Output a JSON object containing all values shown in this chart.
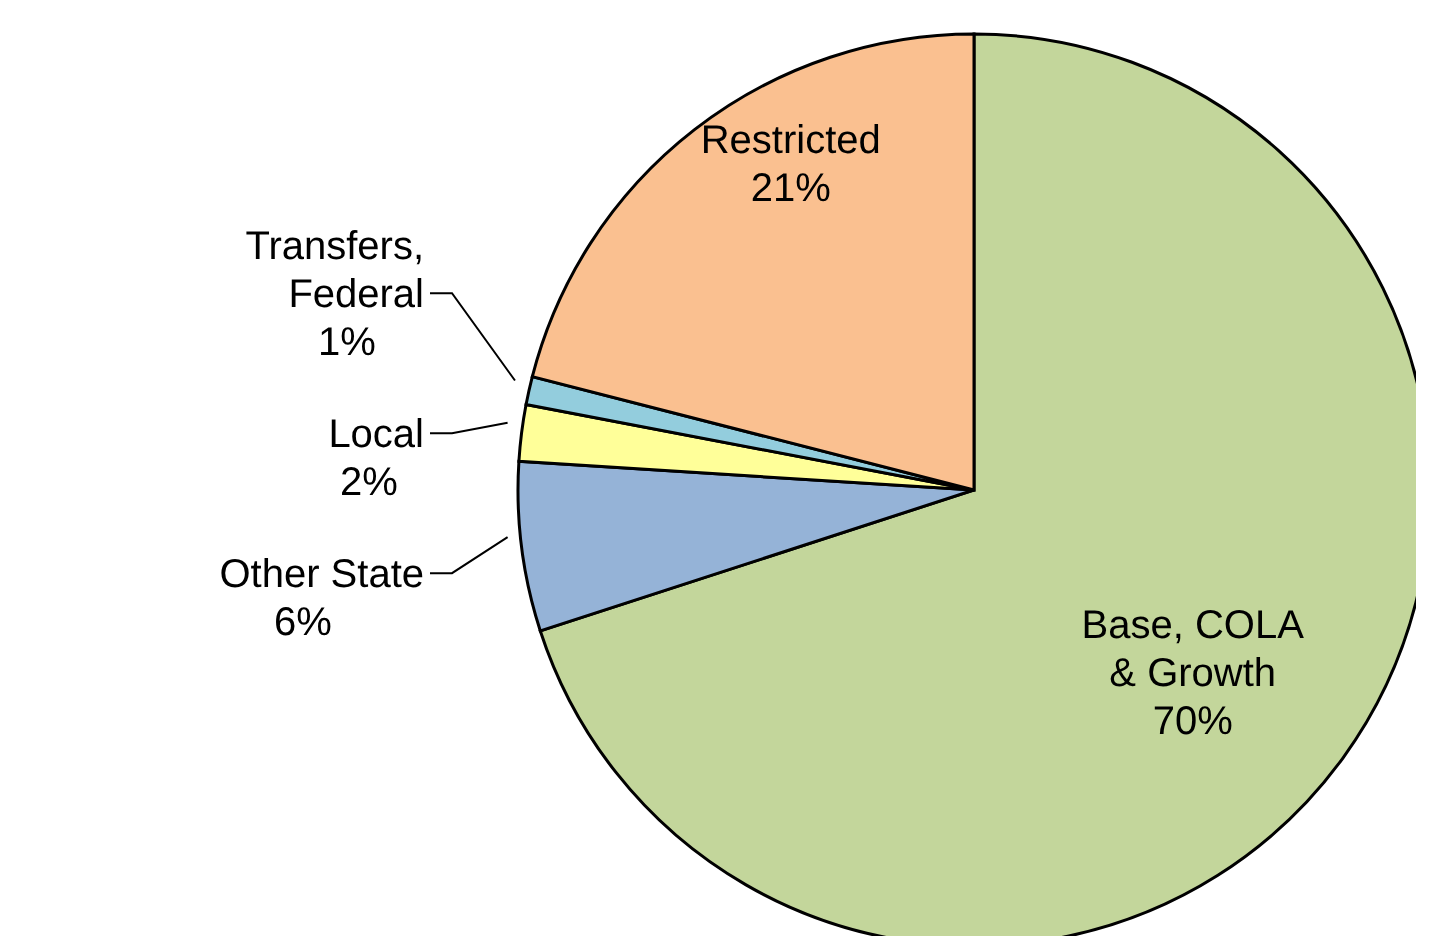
{
  "chart_data": {
    "type": "pie",
    "categories": [
      "Base, COLA & Growth",
      "Other State",
      "Local",
      "Transfers, Federal",
      "Restricted"
    ],
    "values": [
      70,
      6,
      2,
      1,
      21
    ],
    "value_labels": [
      "70%",
      "6%",
      "2%",
      "1%",
      "21%"
    ],
    "colors": [
      "#c3d69b",
      "#95b3d7",
      "#ffff99",
      "#93cddd",
      "#fac090"
    ]
  }
}
